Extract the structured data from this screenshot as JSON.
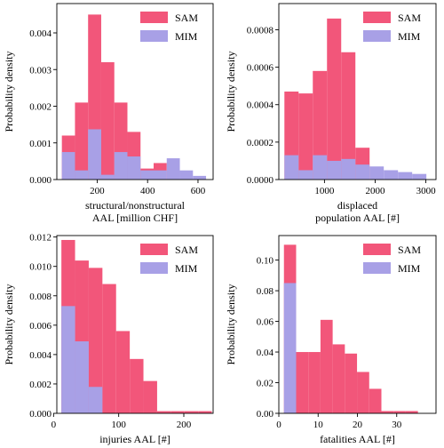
{
  "colors": {
    "SAM": "#f2567a",
    "MIM": "#a8a0e6"
  },
  "legend": [
    "SAM",
    "MIM"
  ],
  "chart_data": [
    {
      "type": "bar",
      "xlabel": [
        "structural/nonstructural",
        "AAL [million CHF]"
      ],
      "ylabel": "Probability density",
      "xlim": [
        40,
        660
      ],
      "ylim": [
        0,
        0.0048
      ],
      "xticks": [
        200,
        400,
        600
      ],
      "yticks": [
        0,
        0.001,
        0.002,
        0.003,
        0.004
      ],
      "ytick_labels": [
        "0.000",
        "0.001",
        "0.002",
        "0.003",
        "0.004"
      ],
      "legend_position": "top-right",
      "series": [
        {
          "name": "SAM",
          "edges": [
            60,
            112,
            164,
            216,
            268,
            320,
            372,
            424,
            476,
            528,
            580,
            632
          ],
          "values": [
            0.0012,
            0.0021,
            0.0045,
            0.0032,
            0.0021,
            0.0013,
            0.0003,
            0.00045,
            0,
            0,
            0
          ]
        },
        {
          "name": "MIM",
          "edges": [
            60,
            112,
            164,
            216,
            268,
            320,
            372,
            424,
            476,
            528,
            580,
            632
          ],
          "values": [
            0.00075,
            0.00025,
            0.00137,
            0.00013,
            0.00075,
            0.00063,
            0.00025,
            0.00025,
            0.00058,
            0.00025,
            0.0001
          ]
        }
      ]
    },
    {
      "type": "bar",
      "xlabel": [
        "displaced",
        "population AAL [#]"
      ],
      "ylabel": "Probability density",
      "xlim": [
        100,
        3200
      ],
      "ylim": [
        0,
        0.00094
      ],
      "xticks": [
        1000,
        2000,
        3000
      ],
      "yticks": [
        0,
        0.0002,
        0.0004,
        0.0006,
        0.0008
      ],
      "ytick_labels": [
        "0.0000",
        "0.0002",
        "0.0004",
        "0.0006",
        "0.0008"
      ],
      "legend_position": "top-right",
      "series": [
        {
          "name": "SAM",
          "edges": [
            210,
            490,
            770,
            1050,
            1330,
            1610,
            1890,
            2170,
            2450,
            2730,
            3010
          ],
          "values": [
            0.00047,
            0.00046,
            0.00058,
            0.00086,
            0.00068,
            0.00017,
            0,
            0,
            0,
            0
          ]
        },
        {
          "name": "MIM",
          "edges": [
            210,
            490,
            770,
            1050,
            1330,
            1610,
            1890,
            2170,
            2450,
            2730,
            3010
          ],
          "values": [
            0.00013,
            5e-05,
            0.00013,
            0.0001,
            0.00011,
            8e-05,
            7e-05,
            5e-05,
            4e-05,
            3e-05
          ]
        }
      ]
    },
    {
      "type": "bar",
      "xlabel": [
        "injuries AAL [#]"
      ],
      "ylabel": "Probability density",
      "xlim": [
        5,
        245
      ],
      "ylim": [
        0,
        0.0121
      ],
      "xticks": [
        0,
        100,
        200
      ],
      "yticks": [
        0,
        0.002,
        0.004,
        0.006,
        0.008,
        0.01,
        0.012
      ],
      "ytick_labels": [
        "0.000",
        "0.002",
        "0.004",
        "0.006",
        "0.008",
        "0.010",
        "0.012"
      ],
      "legend_position": "top-right",
      "series": [
        {
          "name": "SAM",
          "edges": [
            12,
            33,
            54,
            75,
            96,
            117,
            138,
            159,
            180,
            201,
            222,
            243
          ],
          "values": [
            0.0118,
            0.0104,
            0.0099,
            0.0088,
            0.0056,
            0.0037,
            0.0022,
            0.00015,
            0.00015,
            0.00015,
            0.00015
          ]
        },
        {
          "name": "MIM",
          "edges": [
            12,
            33,
            54,
            75,
            96,
            117,
            138,
            159,
            180,
            201,
            222,
            243
          ],
          "values": [
            0.0073,
            0.0049,
            0.0018,
            0,
            0,
            0,
            0,
            0,
            0,
            0,
            0
          ]
        }
      ]
    },
    {
      "type": "bar",
      "xlabel": [
        "fatalities AAL [#]"
      ],
      "ylabel": "Probability density",
      "xlim": [
        0,
        40
      ],
      "ylim": [
        0,
        0.116
      ],
      "xticks": [
        0,
        10,
        20,
        30
      ],
      "yticks": [
        0,
        0.02,
        0.04,
        0.06,
        0.08,
        0.1
      ],
      "ytick_labels": [
        "0.00",
        "0.02",
        "0.04",
        "0.06",
        "0.08",
        "0.10"
      ],
      "legend_position": "top-right",
      "series": [
        {
          "name": "SAM",
          "edges": [
            1.3,
            4.4,
            7.5,
            10.6,
            13.7,
            16.8,
            19.9,
            23.0,
            26.1,
            29.2,
            32.3,
            35.4
          ],
          "values": [
            0.11,
            0.04,
            0.04,
            0.061,
            0.045,
            0.039,
            0.027,
            0.016,
            0.0015,
            0.0015,
            0.0015
          ]
        },
        {
          "name": "MIM",
          "edges": [
            1.3,
            4.4,
            7.5,
            10.6,
            13.7,
            16.8,
            19.9,
            23.0,
            26.1,
            29.2,
            32.3,
            35.4
          ],
          "values": [
            0.085,
            0,
            0,
            0,
            0,
            0,
            0,
            0,
            0,
            0,
            0
          ]
        }
      ]
    }
  ]
}
